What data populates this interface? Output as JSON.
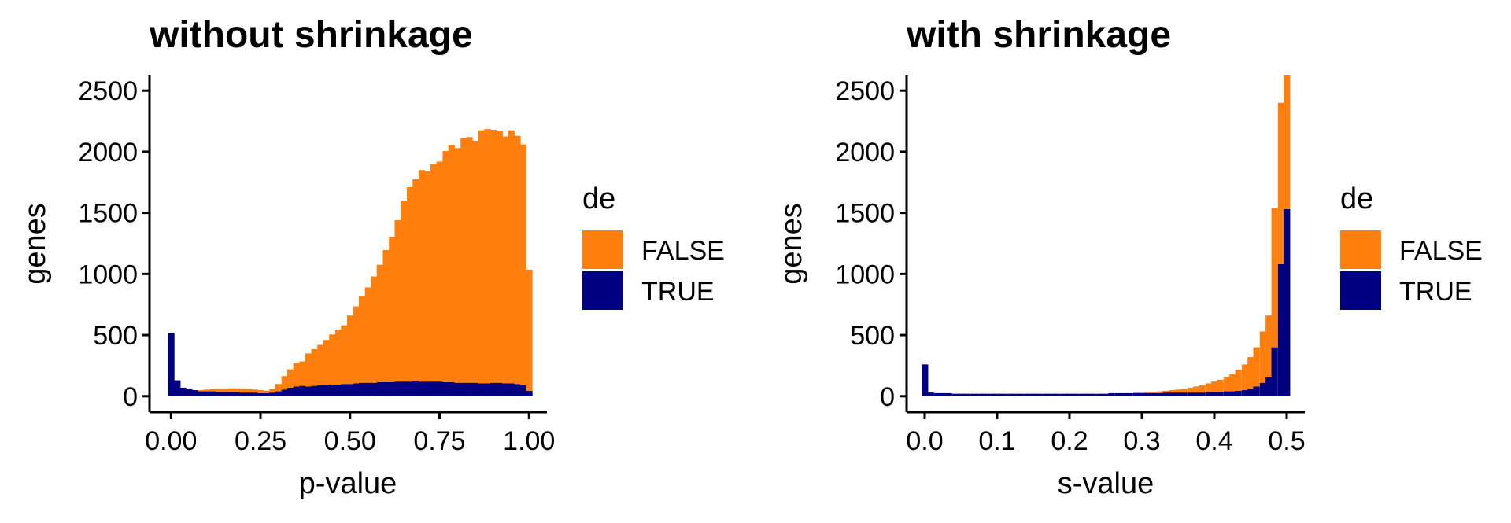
{
  "chart_data": [
    {
      "type": "bar",
      "stacked": true,
      "title": "without shrinkage",
      "xlabel": "p-value",
      "ylabel": "genes",
      "xlim": [
        -0.06,
        1.05
      ],
      "ylim": [
        -130,
        2630
      ],
      "x_ticks": [
        0.0,
        0.25,
        0.5,
        0.75,
        1.0
      ],
      "x_tick_labels": [
        "0.00",
        "0.25",
        "0.50",
        "0.75",
        "1.00"
      ],
      "y_ticks": [
        0,
        500,
        1000,
        1500,
        2000,
        2500
      ],
      "y_tick_labels": [
        "0",
        "500",
        "1000",
        "1500",
        "2000",
        "2500"
      ],
      "bin_width": 0.0167,
      "x": [
        0.0,
        0.017,
        0.033,
        0.05,
        0.067,
        0.083,
        0.1,
        0.117,
        0.133,
        0.15,
        0.167,
        0.183,
        0.2,
        0.217,
        0.233,
        0.25,
        0.267,
        0.283,
        0.3,
        0.317,
        0.333,
        0.35,
        0.367,
        0.383,
        0.4,
        0.417,
        0.433,
        0.45,
        0.467,
        0.483,
        0.5,
        0.517,
        0.533,
        0.55,
        0.567,
        0.583,
        0.6,
        0.617,
        0.633,
        0.65,
        0.667,
        0.683,
        0.7,
        0.717,
        0.733,
        0.75,
        0.767,
        0.783,
        0.8,
        0.817,
        0.833,
        0.85,
        0.867,
        0.883,
        0.9,
        0.917,
        0.933,
        0.95,
        0.967,
        0.983,
        1.0
      ],
      "series": [
        {
          "name": "TRUE",
          "color": "#000080",
          "values": [
            520,
            130,
            70,
            60,
            50,
            40,
            40,
            40,
            35,
            35,
            35,
            35,
            30,
            30,
            30,
            25,
            25,
            30,
            40,
            55,
            70,
            80,
            85,
            80,
            85,
            90,
            90,
            95,
            95,
            100,
            100,
            105,
            110,
            110,
            110,
            115,
            115,
            115,
            120,
            120,
            120,
            125,
            120,
            120,
            120,
            120,
            115,
            115,
            110,
            110,
            110,
            110,
            105,
            105,
            110,
            110,
            105,
            105,
            100,
            90,
            45
          ]
        },
        {
          "name": "FALSE",
          "color": "#FF7F0E",
          "values": [
            0,
            0,
            0,
            0,
            0,
            10,
            15,
            20,
            25,
            25,
            30,
            30,
            30,
            30,
            25,
            25,
            20,
            30,
            60,
            110,
            150,
            190,
            200,
            270,
            300,
            330,
            370,
            410,
            450,
            480,
            560,
            630,
            710,
            780,
            870,
            960,
            1080,
            1190,
            1320,
            1480,
            1590,
            1650,
            1730,
            1720,
            1780,
            1800,
            1890,
            1940,
            1920,
            2000,
            2010,
            1980,
            2070,
            2080,
            2070,
            2060,
            2020,
            2070,
            2030,
            1970,
            990
          ]
        }
      ],
      "legend": {
        "title": "de",
        "entries": [
          "FALSE",
          "TRUE"
        ],
        "placement": "right"
      }
    },
    {
      "type": "bar",
      "stacked": true,
      "title": "with shrinkage",
      "xlabel": "s-value",
      "ylabel": "genes",
      "xlim": [
        -0.025,
        0.525
      ],
      "ylim": [
        -130,
        2630
      ],
      "x_ticks": [
        0.0,
        0.1,
        0.2,
        0.3,
        0.4,
        0.5
      ],
      "x_tick_labels": [
        "0.0",
        "0.1",
        "0.2",
        "0.3",
        "0.4",
        "0.5"
      ],
      "y_ticks": [
        0,
        500,
        1000,
        1500,
        2000,
        2500
      ],
      "y_tick_labels": [
        "0",
        "500",
        "1000",
        "1500",
        "2000",
        "2500"
      ],
      "bin_width": 0.0083,
      "x": [
        0.0,
        0.008,
        0.017,
        0.025,
        0.033,
        0.042,
        0.05,
        0.058,
        0.067,
        0.075,
        0.083,
        0.092,
        0.1,
        0.108,
        0.117,
        0.125,
        0.133,
        0.142,
        0.15,
        0.158,
        0.167,
        0.175,
        0.183,
        0.192,
        0.2,
        0.208,
        0.217,
        0.225,
        0.233,
        0.242,
        0.25,
        0.258,
        0.267,
        0.275,
        0.283,
        0.292,
        0.3,
        0.308,
        0.317,
        0.325,
        0.333,
        0.342,
        0.35,
        0.358,
        0.367,
        0.375,
        0.383,
        0.392,
        0.4,
        0.408,
        0.417,
        0.425,
        0.433,
        0.442,
        0.45,
        0.458,
        0.467,
        0.475,
        0.483,
        0.492,
        0.5
      ],
      "series": [
        {
          "name": "TRUE",
          "color": "#000080",
          "values": [
            260,
            30,
            25,
            25,
            25,
            20,
            20,
            20,
            20,
            20,
            20,
            20,
            20,
            20,
            20,
            20,
            20,
            20,
            20,
            20,
            20,
            20,
            20,
            20,
            20,
            20,
            20,
            20,
            20,
            20,
            20,
            25,
            25,
            25,
            25,
            25,
            25,
            25,
            25,
            25,
            30,
            30,
            30,
            30,
            30,
            30,
            30,
            35,
            35,
            35,
            40,
            40,
            45,
            50,
            60,
            80,
            110,
            160,
            400,
            1080,
            1530
          ]
        },
        {
          "name": "FALSE",
          "color": "#FF7F0E",
          "values": [
            0,
            0,
            0,
            0,
            0,
            0,
            0,
            0,
            0,
            0,
            0,
            0,
            0,
            0,
            0,
            0,
            0,
            0,
            0,
            0,
            0,
            0,
            0,
            0,
            0,
            0,
            0,
            0,
            0,
            0,
            0,
            0,
            0,
            0,
            0,
            5,
            5,
            10,
            10,
            15,
            15,
            20,
            25,
            30,
            40,
            50,
            60,
            70,
            85,
            100,
            120,
            140,
            170,
            210,
            260,
            320,
            420,
            500,
            1140,
            1320,
            1100
          ]
        }
      ],
      "legend": {
        "title": "de",
        "entries": [
          "FALSE",
          "TRUE"
        ],
        "placement": "right"
      }
    }
  ]
}
